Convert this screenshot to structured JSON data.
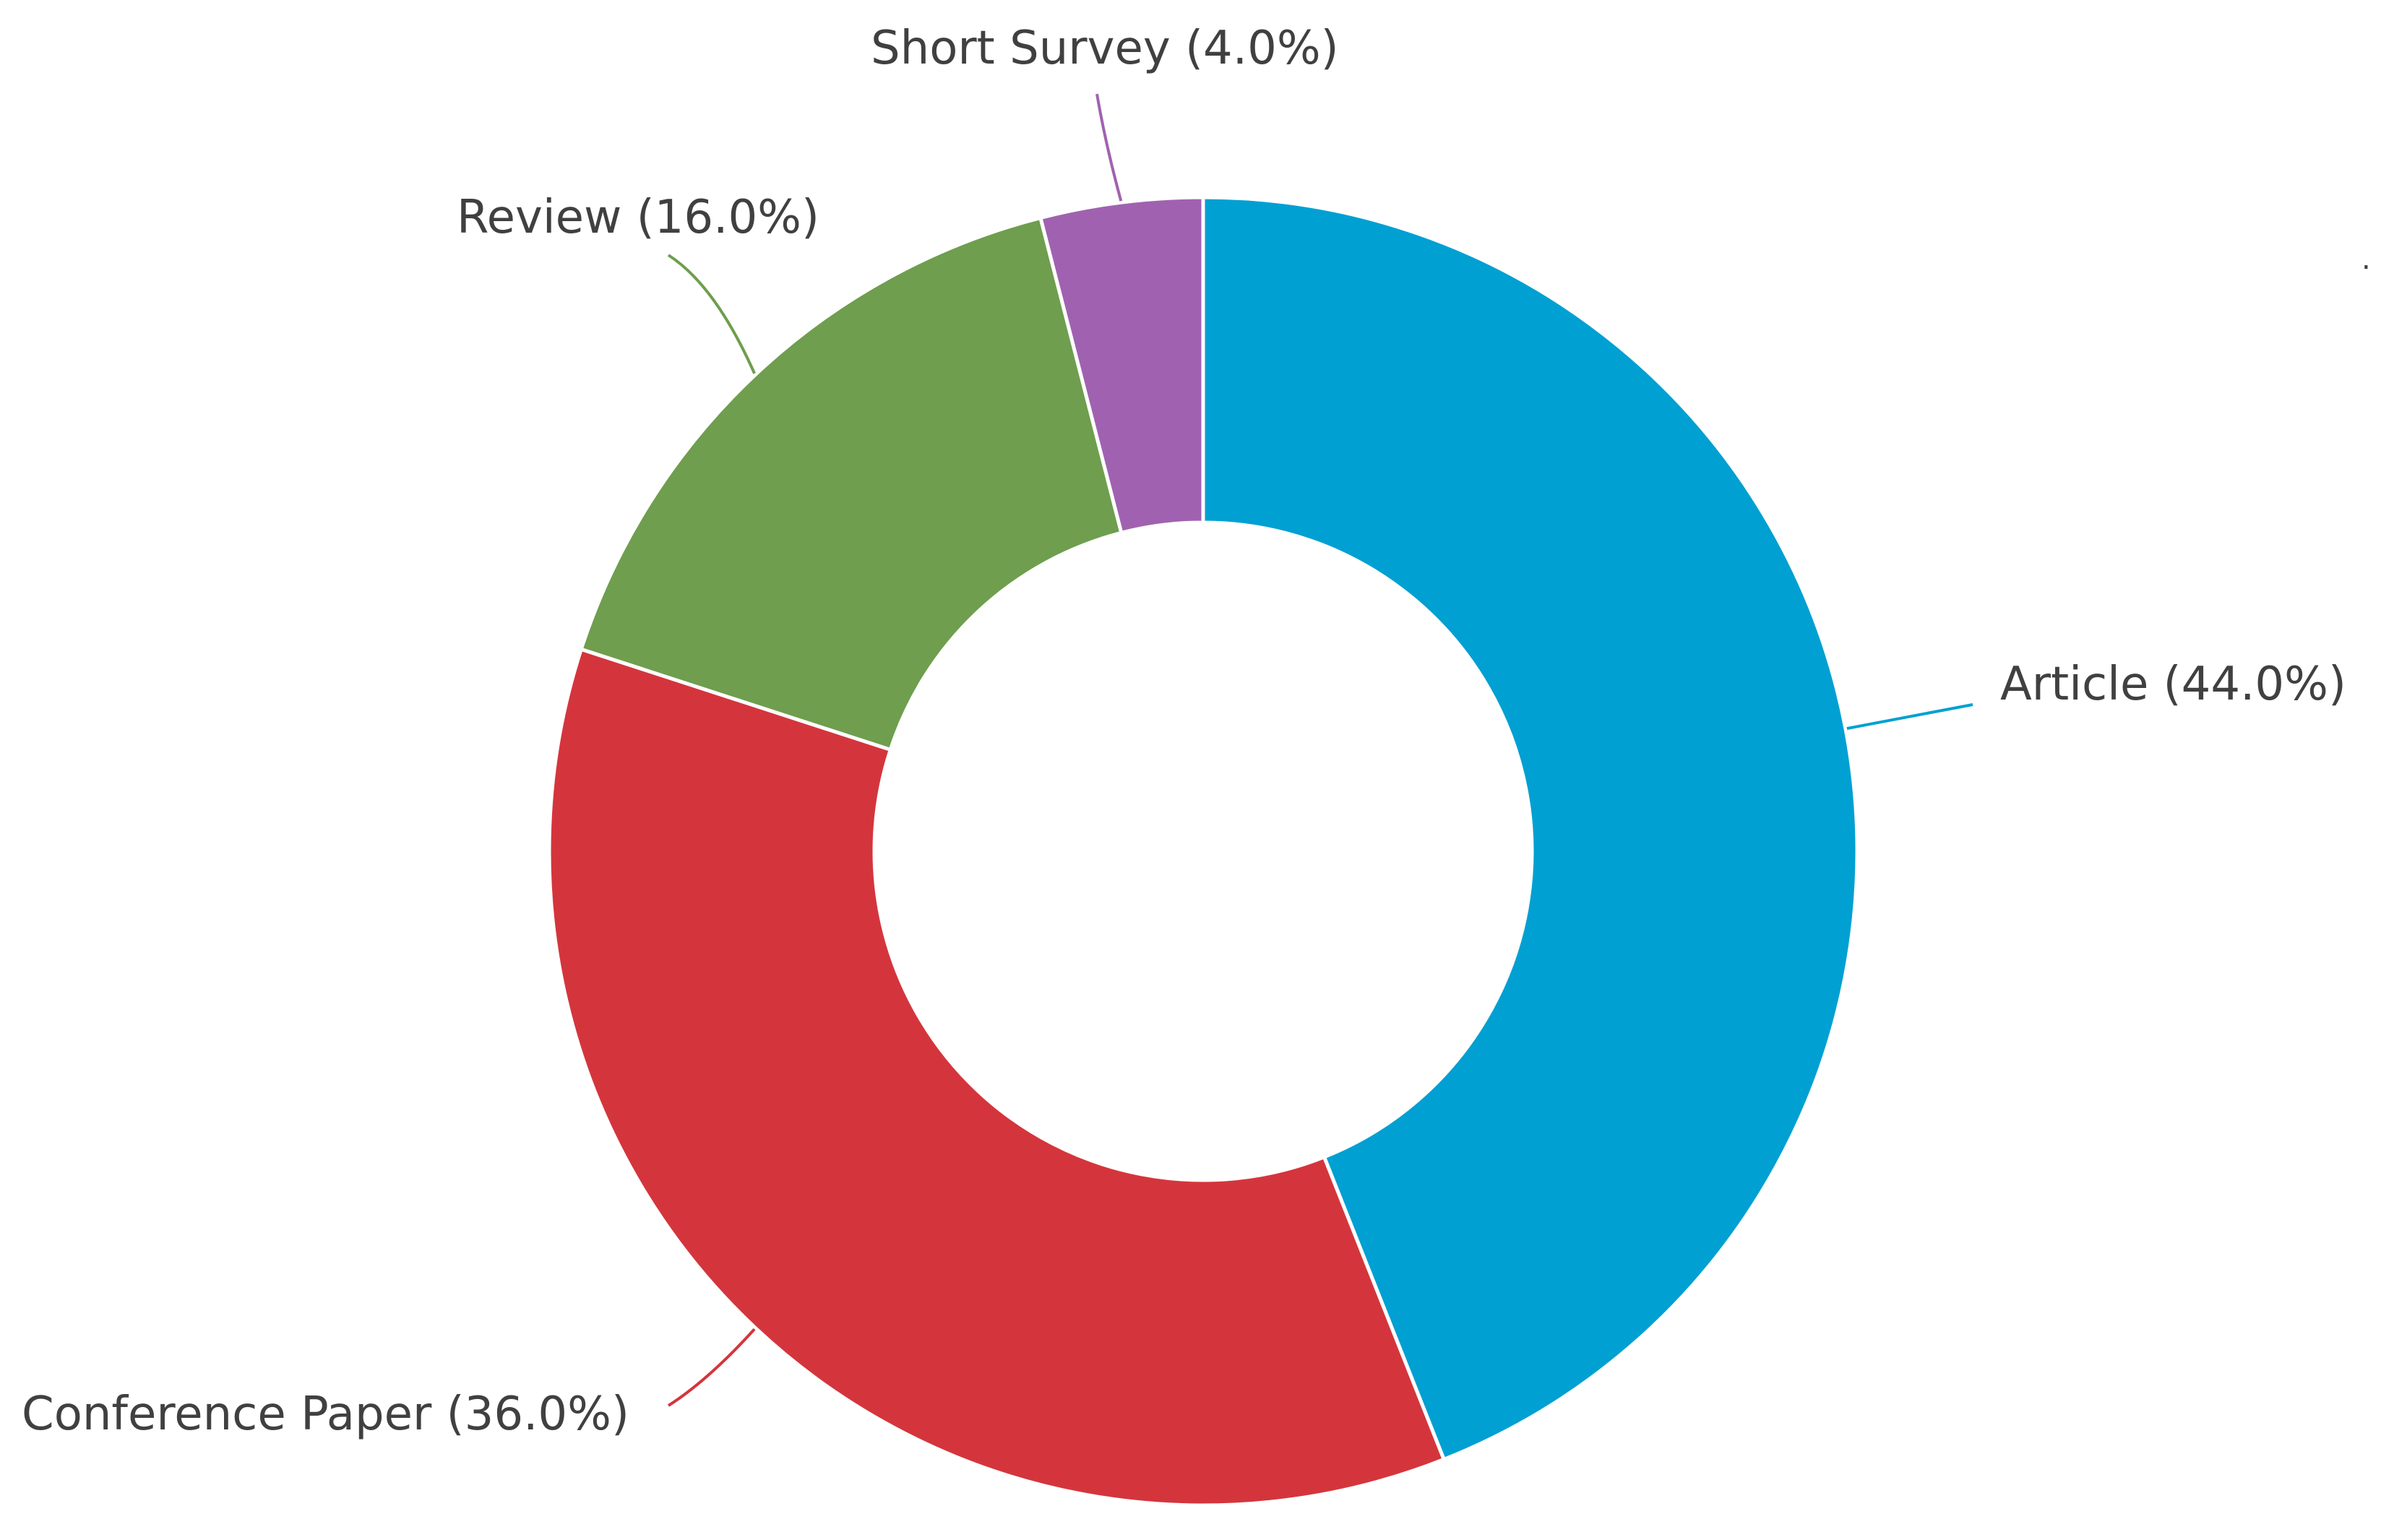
{
  "chart_data": {
    "type": "pie",
    "variant": "donut",
    "start": "12 o'clock",
    "direction": "clockwise",
    "slices": [
      {
        "label": "Article",
        "pct_text": "(44.0%)",
        "value": 44.0,
        "color": "#00A0D2"
      },
      {
        "label": "Conference Paper",
        "pct_text": "(36.0%)",
        "value": 36.0,
        "color": "#D4353C"
      },
      {
        "label": "Review",
        "pct_text": "(16.0%)",
        "value": 16.0,
        "color": "#6E9E4E"
      },
      {
        "label": "Short Survey",
        "pct_text": "(4.0%)",
        "value": 4.0,
        "color": "#A062B0"
      }
    ],
    "colors": {
      "text": "#404040",
      "slice_border": "#ffffff"
    }
  }
}
